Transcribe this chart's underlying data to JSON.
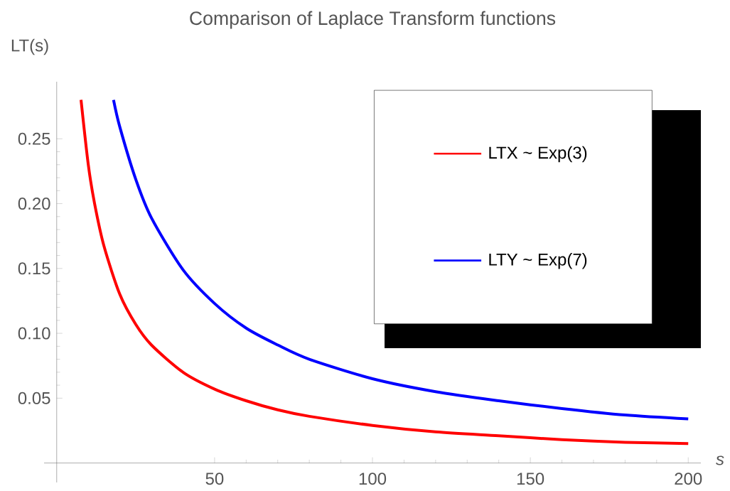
{
  "chart_data": {
    "type": "line",
    "title": "Comparison of Laplace Transform functions",
    "xlabel": "s",
    "ylabel": "LT(s)",
    "xlim": [
      -4,
      204
    ],
    "ylim": [
      -0.015,
      0.294
    ],
    "xticks": [
      50,
      100,
      150,
      200
    ],
    "yticks": [
      0.05,
      {
        "value": 0.1,
        "label": "0.10"
      },
      0.15,
      {
        "value": 0.2,
        "label": "0.20"
      },
      0.25
    ],
    "legend": "top right",
    "marker": "none",
    "line_style": "solid",
    "grid": false,
    "series": [
      {
        "name": "LTX ~ Exp(3)",
        "color": "#ff0000",
        "x": [
          7.7,
          10,
          12,
          15,
          20,
          25,
          30,
          40,
          50,
          60,
          70,
          80,
          100,
          120,
          140,
          160,
          180,
          200
        ],
        "values": [
          0.28,
          0.23,
          0.2,
          0.167,
          0.13,
          0.107,
          0.091,
          0.07,
          0.057,
          0.048,
          0.041,
          0.036,
          0.029,
          0.024,
          0.021,
          0.018,
          0.016,
          0.015
        ]
      },
      {
        "name": "LTY ~ Exp(7)",
        "color": "#0000ff",
        "x": [
          18,
          20,
          25,
          30,
          40,
          50,
          60,
          70,
          80,
          100,
          120,
          140,
          160,
          180,
          200
        ],
        "values": [
          0.28,
          0.259,
          0.219,
          0.189,
          0.149,
          0.123,
          0.104,
          0.091,
          0.08,
          0.065,
          0.055,
          0.048,
          0.042,
          0.037,
          0.034
        ]
      }
    ]
  }
}
